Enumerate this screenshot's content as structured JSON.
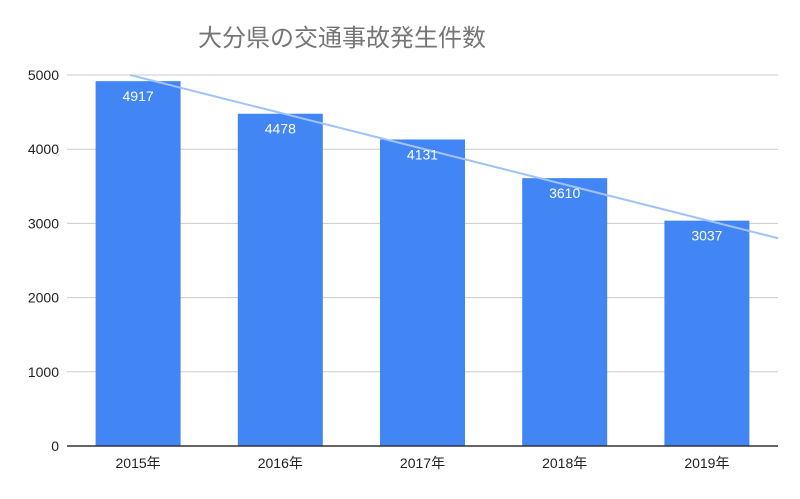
{
  "chart_data": {
    "type": "bar",
    "title": "大分県の交通事故発生件数",
    "xlabel": "",
    "ylabel": "",
    "categories": [
      "2015年",
      "2016年",
      "2017年",
      "2018年",
      "2019年"
    ],
    "series": [
      {
        "values": [
          4917,
          4478,
          4131,
          3610,
          3037
        ]
      }
    ],
    "data_labels": [
      "4917",
      "4478",
      "4131",
      "3610",
      "3037"
    ],
    "ylim": [
      0,
      5000
    ],
    "y_ticks": [
      0,
      1000,
      2000,
      3000,
      4000,
      5000
    ],
    "y_tick_labels": [
      "0",
      "1000",
      "2000",
      "3000",
      "4000",
      "5000"
    ],
    "grid": true,
    "trendline": {
      "type": "linear",
      "start_value": 5000,
      "end_value": 2800
    },
    "colors": {
      "bar": "#4285f4",
      "trendline": "#a1c2fa",
      "grid": "#cccccc",
      "axis": "#333333",
      "tick_text": "#222222",
      "data_label": "#ffffff",
      "title": "#757575"
    }
  }
}
